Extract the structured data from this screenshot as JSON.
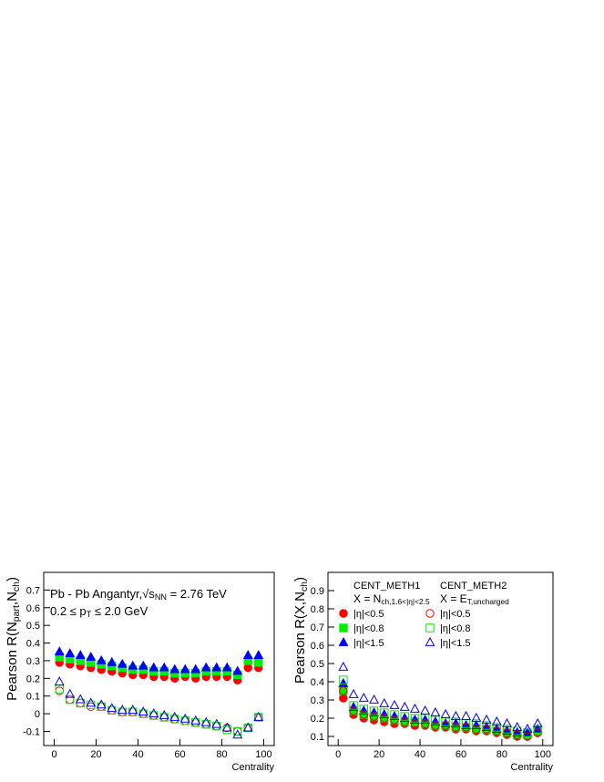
{
  "chart_data": [
    {
      "type": "scatter",
      "ylabel": [
        "Pearson R(N",
        "part",
        ",N",
        "ch",
        ")"
      ],
      "xlabel": "Centrality",
      "annotations": [
        [
          "Pb - Pb Angantyr,√s",
          "NN",
          " = 2.76 TeV"
        ],
        [
          "0.2 ≤ p",
          "T",
          " ≤ 2.0 GeV"
        ]
      ],
      "xlim": [
        -5,
        105
      ],
      "xticks": [
        0,
        20,
        40,
        60,
        80,
        100
      ],
      "ylim": [
        -0.18,
        0.8
      ],
      "yticks": [
        -0.1,
        0,
        0.1,
        0.2,
        0.3,
        0.4,
        0.5,
        0.6,
        0.7
      ],
      "x": [
        2.5,
        7.5,
        12.5,
        17.5,
        22.5,
        27.5,
        32.5,
        37.5,
        42.5,
        47.5,
        52.5,
        57.5,
        62.5,
        67.5,
        72.5,
        77.5,
        82.5,
        87.5,
        92.5,
        97.5
      ],
      "series": [
        {
          "color": "#ff0000",
          "marker": "circle",
          "filled": true,
          "values": [
            0.29,
            0.28,
            0.27,
            0.26,
            0.25,
            0.24,
            0.23,
            0.22,
            0.22,
            0.21,
            0.21,
            0.2,
            0.21,
            0.2,
            0.21,
            0.21,
            0.21,
            0.19,
            0.26,
            0.26
          ]
        },
        {
          "color": "#00ee00",
          "marker": "square",
          "filled": true,
          "values": [
            0.32,
            0.31,
            0.3,
            0.29,
            0.28,
            0.27,
            0.26,
            0.25,
            0.25,
            0.24,
            0.24,
            0.23,
            0.23,
            0.23,
            0.24,
            0.24,
            0.24,
            0.22,
            0.3,
            0.29
          ]
        },
        {
          "color": "#0000ff",
          "marker": "triangle",
          "filled": true,
          "values": [
            0.35,
            0.34,
            0.33,
            0.32,
            0.3,
            0.29,
            0.28,
            0.27,
            0.27,
            0.26,
            0.26,
            0.25,
            0.25,
            0.25,
            0.26,
            0.26,
            0.26,
            0.24,
            0.33,
            0.33
          ]
        },
        {
          "color": "#ff0000",
          "marker": "circle",
          "filled": false,
          "values": [
            0.13,
            0.08,
            0.06,
            0.04,
            0.04,
            0.02,
            0.01,
            0.01,
            0,
            -0.01,
            -0.02,
            -0.03,
            -0.04,
            -0.05,
            -0.06,
            -0.07,
            -0.08,
            -0.1,
            -0.08,
            -0.02
          ]
        },
        {
          "color": "#00ee00",
          "marker": "square",
          "filled": false,
          "values": [
            0.14,
            0.08,
            0.06,
            0.05,
            0.04,
            0.02,
            0.01,
            0.01,
            0,
            -0.01,
            -0.02,
            -0.03,
            -0.04,
            -0.05,
            -0.06,
            -0.07,
            -0.09,
            -0.1,
            -0.08,
            -0.02
          ]
        },
        {
          "color": "#0000ff",
          "marker": "triangle",
          "filled": false,
          "values": [
            0.18,
            0.11,
            0.08,
            0.06,
            0.05,
            0.03,
            0.02,
            0.02,
            0.01,
            0,
            -0.01,
            -0.02,
            -0.03,
            -0.04,
            -0.05,
            -0.06,
            -0.08,
            -0.12,
            -0.08,
            -0.02
          ]
        }
      ]
    },
    {
      "type": "scatter",
      "ylabel": [
        "Pearson R(X,N",
        "ch",
        ")"
      ],
      "xlabel": "Centrality",
      "legend_headers": [
        [
          "CENT_METH1",
          [
            "X = N",
            "ch,1.6<|η|<2.5"
          ]
        ],
        [
          "CENT_METH2",
          [
            "X = E",
            "T,uncharged"
          ]
        ]
      ],
      "xlim": [
        -5,
        105
      ],
      "xticks": [
        0,
        20,
        40,
        60,
        80,
        100
      ],
      "ylim": [
        0.05,
        1.0
      ],
      "yticks": [
        0.1,
        0.2,
        0.3,
        0.4,
        0.5,
        0.6,
        0.7,
        0.8,
        0.9
      ],
      "x": [
        2.5,
        7.5,
        12.5,
        17.5,
        22.5,
        27.5,
        32.5,
        37.5,
        42.5,
        47.5,
        52.5,
        57.5,
        62.5,
        67.5,
        72.5,
        77.5,
        82.5,
        87.5,
        92.5,
        97.5
      ],
      "series": [
        {
          "name": "|η|<0.5",
          "color": "#ff0000",
          "marker": "circle",
          "filled": true,
          "values": [
            0.31,
            0.22,
            0.2,
            0.19,
            0.18,
            0.17,
            0.17,
            0.16,
            0.16,
            0.15,
            0.15,
            0.14,
            0.14,
            0.13,
            0.13,
            0.12,
            0.11,
            0.1,
            0.1,
            0.12
          ]
        },
        {
          "name": "|η|<0.8",
          "color": "#00ee00",
          "marker": "square",
          "filled": true,
          "values": [
            0.35,
            0.24,
            0.22,
            0.21,
            0.2,
            0.19,
            0.18,
            0.18,
            0.17,
            0.16,
            0.16,
            0.15,
            0.15,
            0.14,
            0.14,
            0.13,
            0.12,
            0.11,
            0.11,
            0.13
          ]
        },
        {
          "name": "|η|<1.5",
          "color": "#0000ff",
          "marker": "triangle",
          "filled": true,
          "values": [
            0.39,
            0.26,
            0.24,
            0.23,
            0.22,
            0.21,
            0.2,
            0.19,
            0.19,
            0.18,
            0.17,
            0.17,
            0.16,
            0.16,
            0.15,
            0.14,
            0.13,
            0.12,
            0.12,
            0.14
          ]
        },
        {
          "name": "|η|<0.5",
          "color": "#ff0000",
          "marker": "circle",
          "filled": false,
          "values": [
            0.35,
            0.24,
            0.22,
            0.21,
            0.2,
            0.19,
            0.18,
            0.17,
            0.17,
            0.16,
            0.16,
            0.15,
            0.15,
            0.14,
            0.14,
            0.13,
            0.12,
            0.11,
            0.1,
            0.12
          ]
        },
        {
          "name": "|η|<0.8",
          "color": "#00ee00",
          "marker": "square",
          "filled": false,
          "values": [
            0.41,
            0.27,
            0.25,
            0.24,
            0.23,
            0.22,
            0.21,
            0.2,
            0.2,
            0.19,
            0.18,
            0.18,
            0.17,
            0.17,
            0.16,
            0.15,
            0.14,
            0.13,
            0.12,
            0.14
          ]
        },
        {
          "name": "|η|<1.5",
          "color": "#0000ff",
          "marker": "triangle",
          "filled": false,
          "values": [
            0.48,
            0.33,
            0.31,
            0.3,
            0.28,
            0.27,
            0.26,
            0.25,
            0.24,
            0.23,
            0.22,
            0.21,
            0.21,
            0.2,
            0.19,
            0.18,
            0.17,
            0.15,
            0.14,
            0.17
          ]
        }
      ]
    }
  ]
}
